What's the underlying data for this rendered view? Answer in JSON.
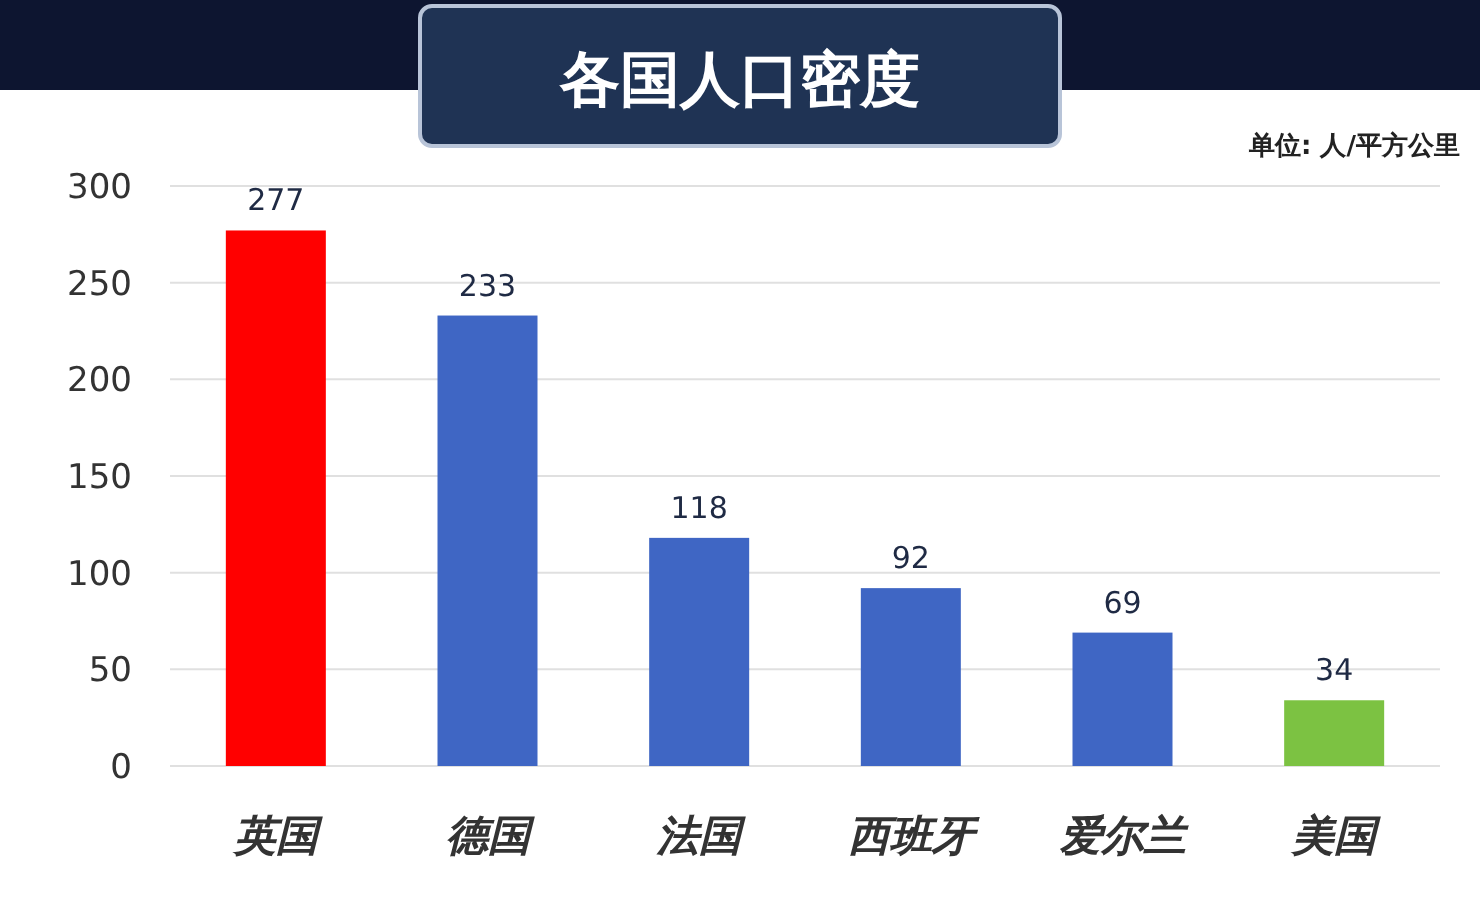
{
  "chart_data": {
    "type": "bar",
    "title": "各国人口密度",
    "annotations": [
      "单位: 人/平方公里"
    ],
    "categories": [
      "英国",
      "德国",
      "法国",
      "西班牙",
      "爱尔兰",
      "美国"
    ],
    "values": [
      277,
      233,
      118,
      92,
      69,
      34
    ],
    "colors": [
      "#ff0000",
      "#3f66c4",
      "#3f66c4",
      "#3f66c4",
      "#3f66c4",
      "#7cc242"
    ],
    "ylim": [
      0,
      300
    ],
    "yticks": [
      0,
      50,
      100,
      150,
      200,
      250,
      300
    ],
    "grid": "y",
    "data_labels": true
  }
}
